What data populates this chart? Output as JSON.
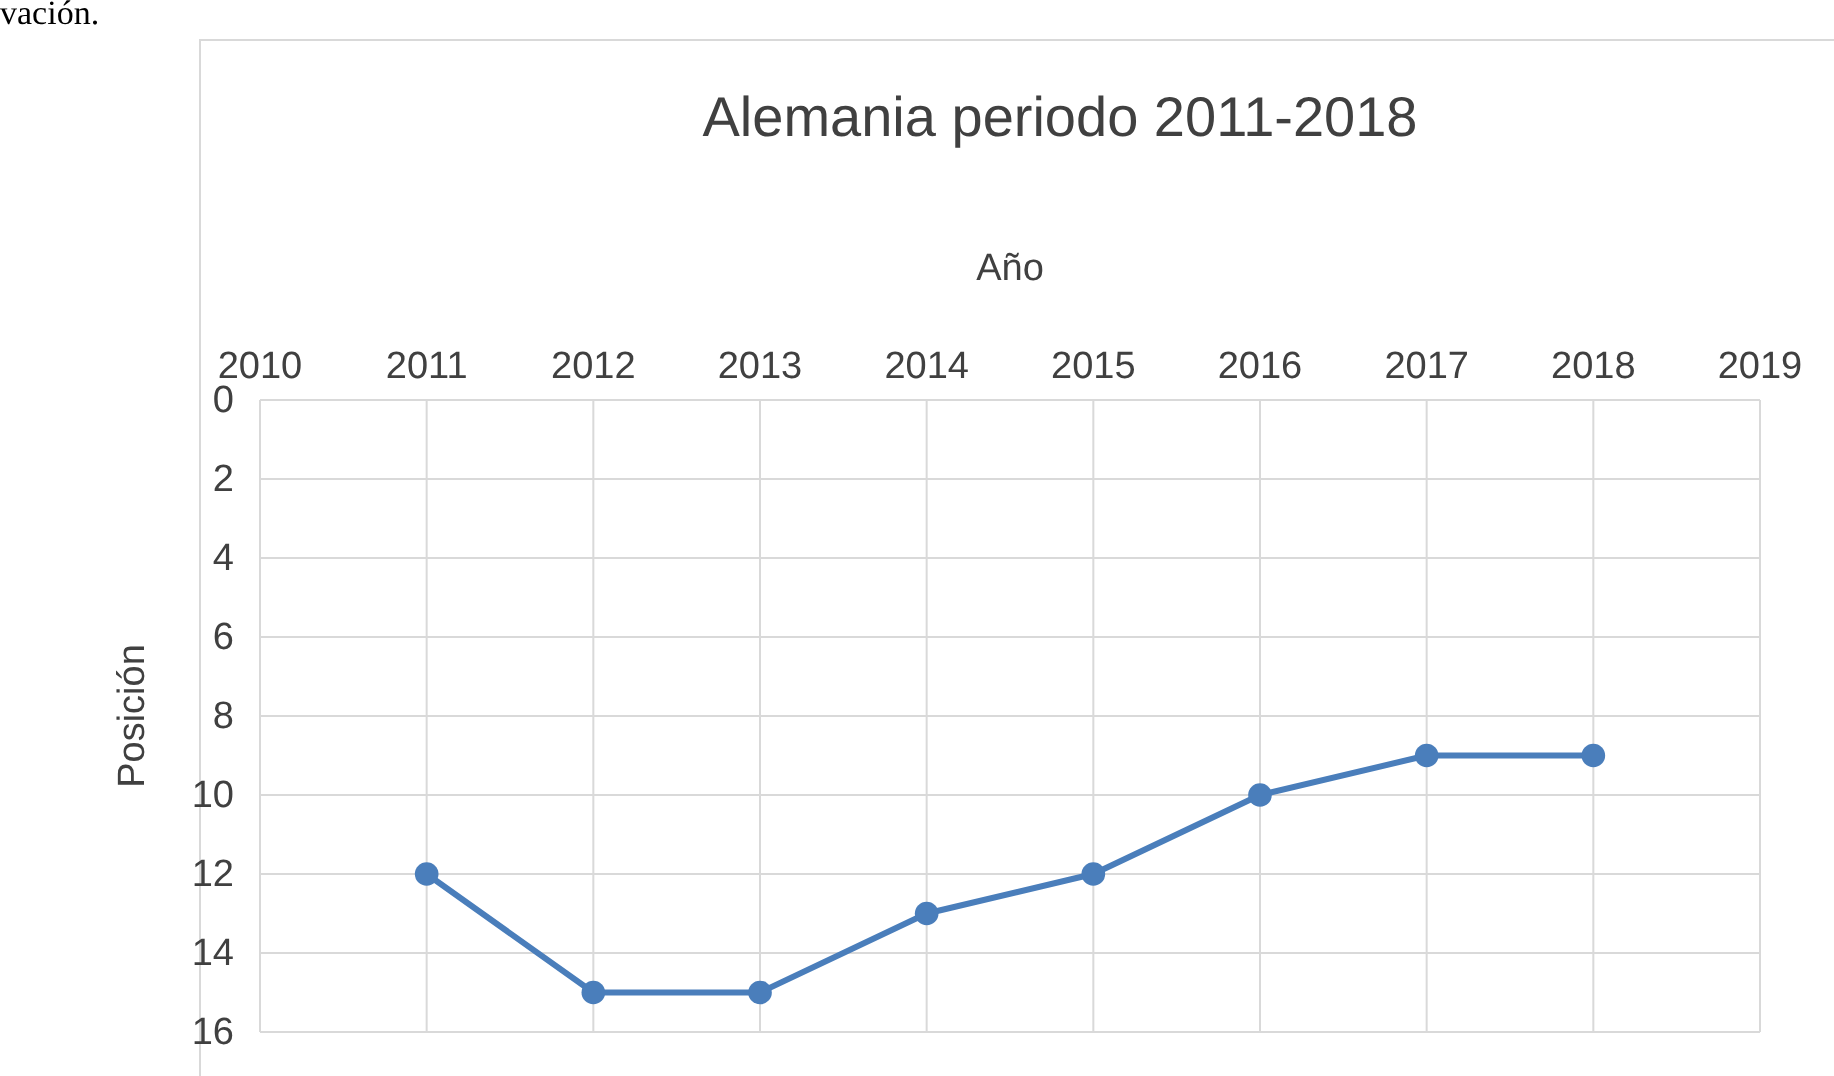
{
  "chart_data": {
    "type": "line",
    "title": "Alemania periodo 2011-2018",
    "xlabel": "Año",
    "ylabel": "Posición",
    "annotations": [
      "vación."
    ],
    "x": [
      2011,
      2012,
      2013,
      2014,
      2015,
      2016,
      2017,
      2018
    ],
    "series": [
      {
        "color": "#4a7ebb",
        "values": [
          12,
          15,
          15,
          13,
          12,
          10,
          9,
          9
        ]
      }
    ],
    "xlim": [
      2010,
      2019
    ],
    "xticks": [
      2010,
      2011,
      2012,
      2013,
      2014,
      2015,
      2016,
      2017,
      2018,
      2019
    ],
    "ylim": [
      16,
      0
    ],
    "yticks": [
      0,
      2,
      4,
      6,
      8,
      10,
      12,
      14,
      16
    ],
    "grid": true,
    "marker": "circle",
    "line_style": "solid"
  }
}
